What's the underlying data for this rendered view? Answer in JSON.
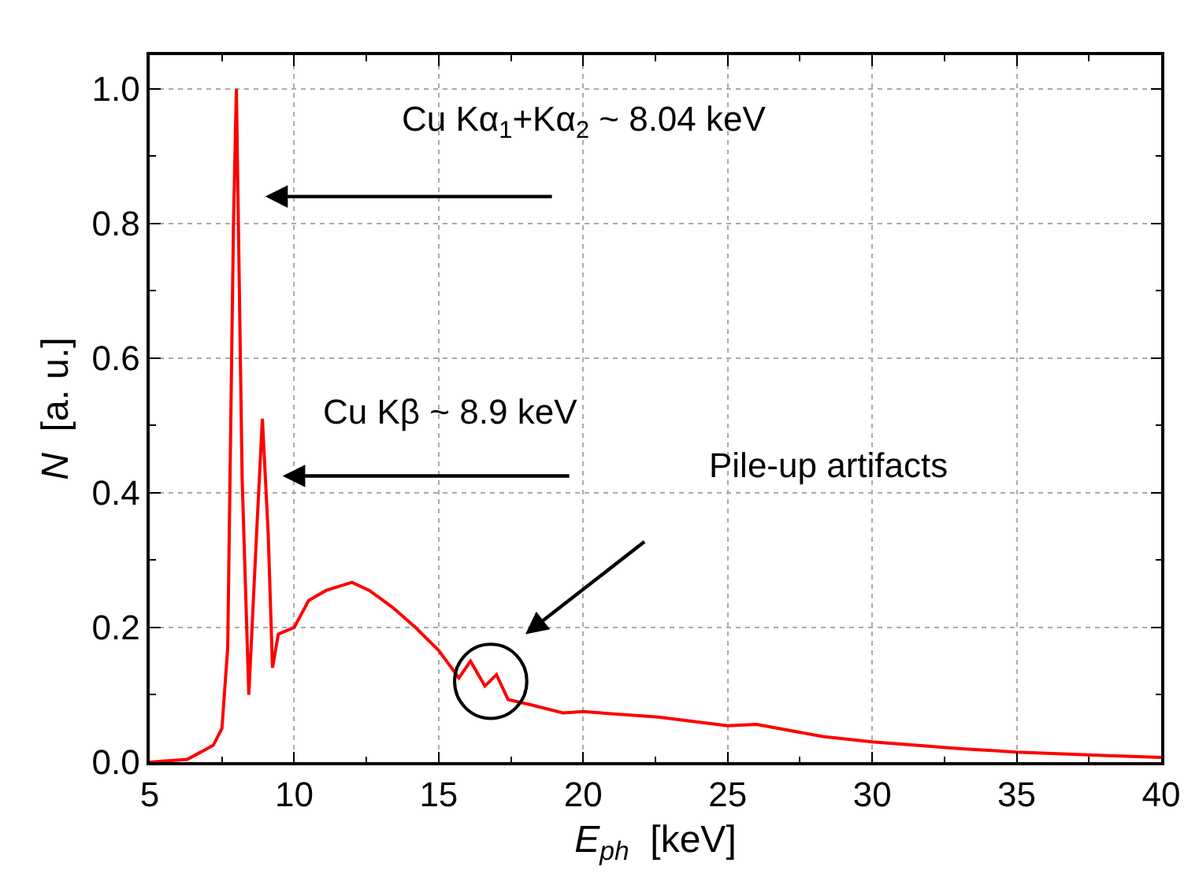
{
  "chart_data": {
    "type": "line",
    "xlabel": "E$_{ph}$ [keV]",
    "ylabel": "N [a. u.]",
    "x": [
      5,
      6.3,
      7.2,
      7.5,
      7.7,
      7.9,
      8.0,
      8.2,
      8.43,
      8.7,
      8.9,
      9.1,
      9.25,
      9.45,
      10,
      10.5,
      11.1,
      12.0,
      12.6,
      13.4,
      14.2,
      15,
      15.7,
      16.1,
      16.6,
      17.0,
      17.4,
      18.2,
      19.3,
      20,
      22.6,
      25,
      26,
      28.3,
      30,
      33.1,
      35,
      38,
      40
    ],
    "series": [
      {
        "color": "#ff0000",
        "values": [
          0,
          0.004,
          0.025,
          0.05,
          0.17,
          0.8,
          1.0,
          0.42,
          0.1,
          0.34,
          0.51,
          0.34,
          0.14,
          0.19,
          0.2,
          0.24,
          0.255,
          0.267,
          0.255,
          0.23,
          0.2,
          0.166,
          0.125,
          0.15,
          0.113,
          0.13,
          0.093,
          0.085,
          0.073,
          0.075,
          0.067,
          0.054,
          0.056,
          0.038,
          0.03,
          0.02,
          0.015,
          0.01,
          0.007
        ]
      }
    ],
    "xlim": [
      5,
      40
    ],
    "ylim": [
      0,
      1.05
    ],
    "xticks": [
      5,
      10,
      15,
      20,
      25,
      30,
      35,
      40
    ],
    "yticks": [
      {
        "value": 0,
        "label": "0.0"
      },
      {
        "value": 0.2,
        "label": "0.2"
      },
      {
        "value": 0.4,
        "label": "0.4"
      },
      {
        "value": 0.6,
        "label": "0.6"
      },
      {
        "value": 0.8,
        "label": "0.8"
      },
      {
        "value": 1.0,
        "label": "1.0"
      }
    ],
    "grid": true,
    "marker": "none",
    "line_style": "solid",
    "annotations": [
      "Cu Kα$_{1}$+Kα$_{2}$ ~ 8.04 keV",
      "Cu Kβ ~ 8.9 keV",
      "Pile-up artifacts"
    ]
  }
}
